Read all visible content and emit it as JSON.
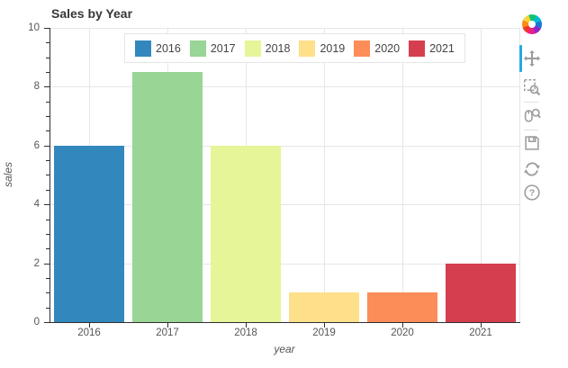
{
  "chart_data": {
    "type": "bar",
    "title": "Sales by Year",
    "categories": [
      "2016",
      "2017",
      "2018",
      "2019",
      "2020",
      "2021"
    ],
    "values": [
      6,
      8.5,
      6,
      1,
      1,
      2
    ],
    "colors": [
      "#3288bd",
      "#99d594",
      "#e6f598",
      "#fee08b",
      "#fc8d59",
      "#d53e4f"
    ],
    "xlabel": "year",
    "ylabel": "sales",
    "ylim": [
      0,
      10
    ],
    "y_ticks": [
      0,
      2,
      4,
      6,
      8,
      10
    ],
    "y_minor_step": 0.5,
    "grid": true,
    "legend": {
      "position": "top",
      "orientation": "horizontal",
      "entries": [
        "2016",
        "2017",
        "2018",
        "2019",
        "2020",
        "2021"
      ]
    }
  },
  "toolbar": {
    "logo": "bokeh-logo",
    "active_color": "#26aae1",
    "icon_color": "#9c9c9c",
    "tools": [
      {
        "name": "pan",
        "active": true
      },
      {
        "name": "box-zoom",
        "active": false
      },
      {
        "name": "wheel-zoom",
        "active": false
      },
      {
        "name": "save",
        "active": false
      },
      {
        "name": "reset",
        "active": false
      },
      {
        "name": "help",
        "active": false
      }
    ]
  }
}
